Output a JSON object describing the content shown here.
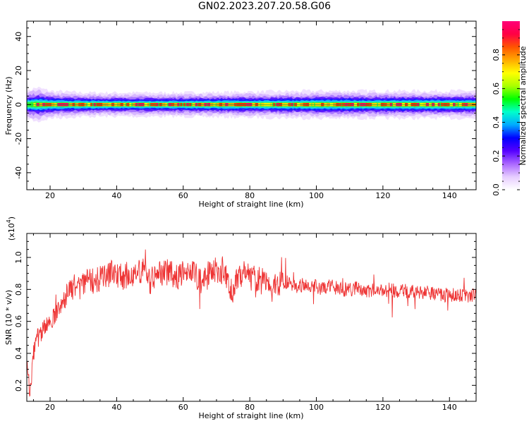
{
  "title": "GN02.2023.207.20.58.G06",
  "chart_data": [
    {
      "type": "heatmap",
      "xlabel": "Height of straight line (km)",
      "ylabel": "Frequency (Hz)",
      "xlim": [
        13,
        148
      ],
      "ylim": [
        -50,
        49
      ],
      "xticks": [
        20,
        40,
        60,
        80,
        100,
        120,
        140
      ],
      "xtick_labels": [
        "20",
        "40",
        "60",
        "80",
        "100",
        "120",
        "140"
      ],
      "yticks": [
        -40,
        -20,
        0,
        20,
        40
      ],
      "ytick_labels": [
        "-40",
        "-20",
        "0",
        "20",
        "40"
      ],
      "colorbar": {
        "label": "Normalized spectral amplitude",
        "range": [
          0,
          1
        ],
        "ticks": [
          0.0,
          0.2,
          0.4,
          0.6,
          0.8
        ],
        "tick_labels": [
          "0.0",
          "0.2",
          "0.4",
          "0.6",
          "0.8"
        ],
        "colormap": [
          "#ffffff",
          "#e6ccff",
          "#aa66ff",
          "#5500ff",
          "#0000ff",
          "#00aaff",
          "#00ffcc",
          "#00ff00",
          "#aaff00",
          "#ffff00",
          "#ffaa00",
          "#ff5500",
          "#ff0044",
          "#ff0077"
        ]
      },
      "band": {
        "center_hz": 0,
        "description_values": [
          {
            "x": 13,
            "halfwidth_hz": 4
          },
          {
            "x": 16,
            "halfwidth_hz": 5
          },
          {
            "x": 20,
            "halfwidth_hz": 4
          },
          {
            "x": 30,
            "halfwidth_hz": 3.5
          },
          {
            "x": 60,
            "halfwidth_hz": 3.5
          },
          {
            "x": 100,
            "halfwidth_hz": 4
          },
          {
            "x": 148,
            "halfwidth_hz": 4
          }
        ]
      }
    },
    {
      "type": "line",
      "xlabel": "Height of straight line (km)",
      "ylabel": "SNR (10 * v/v)",
      "yscale_label": "(x10",
      "yscale_exp": "4",
      "yscale_close": ")",
      "xlim": [
        13,
        148
      ],
      "ylim": [
        0.1,
        1.15
      ],
      "xticks": [
        20,
        40,
        60,
        80,
        100,
        120,
        140
      ],
      "xtick_labels": [
        "20",
        "40",
        "60",
        "80",
        "100",
        "120",
        "140"
      ],
      "yticks": [
        0.2,
        0.4,
        0.6,
        0.8,
        1.0
      ],
      "ytick_labels": [
        "0.2",
        "0.4",
        "0.6",
        "0.8",
        "1.0"
      ],
      "color": "#ee3333",
      "x": [
        13,
        14,
        15,
        16,
        17,
        18,
        19,
        20,
        21,
        22,
        23,
        24,
        25,
        26,
        27,
        28,
        29,
        30,
        32,
        34,
        36,
        38,
        40,
        42,
        44,
        46,
        48,
        50,
        52,
        54,
        56,
        58,
        60,
        62,
        64,
        66,
        68,
        70,
        71,
        72,
        73,
        74,
        75,
        76,
        78,
        80,
        82,
        84,
        86,
        88,
        90,
        92,
        94,
        96,
        98,
        100,
        102,
        104,
        106,
        108,
        110,
        112,
        114,
        116,
        118,
        120,
        122,
        124,
        126,
        128,
        130,
        132,
        134,
        136,
        138,
        140,
        142,
        144,
        146,
        148
      ],
      "y": [
        0.35,
        0.15,
        0.4,
        0.5,
        0.5,
        0.55,
        0.58,
        0.6,
        0.62,
        0.65,
        0.7,
        0.72,
        0.75,
        0.78,
        0.82,
        0.8,
        0.82,
        0.84,
        0.85,
        0.86,
        0.87,
        0.9,
        0.9,
        0.88,
        0.9,
        0.9,
        0.92,
        0.85,
        0.9,
        0.92,
        0.9,
        0.88,
        0.9,
        0.9,
        0.88,
        0.85,
        0.9,
        0.92,
        0.85,
        0.95,
        0.88,
        0.82,
        0.75,
        0.86,
        0.9,
        0.88,
        0.86,
        0.85,
        0.83,
        0.82,
        0.85,
        0.84,
        0.82,
        0.83,
        0.82,
        0.82,
        0.8,
        0.82,
        0.81,
        0.8,
        0.8,
        0.81,
        0.8,
        0.79,
        0.8,
        0.79,
        0.8,
        0.79,
        0.8,
        0.78,
        0.79,
        0.78,
        0.78,
        0.77,
        0.76,
        0.77,
        0.76,
        0.77,
        0.76,
        0.77
      ]
    }
  ]
}
